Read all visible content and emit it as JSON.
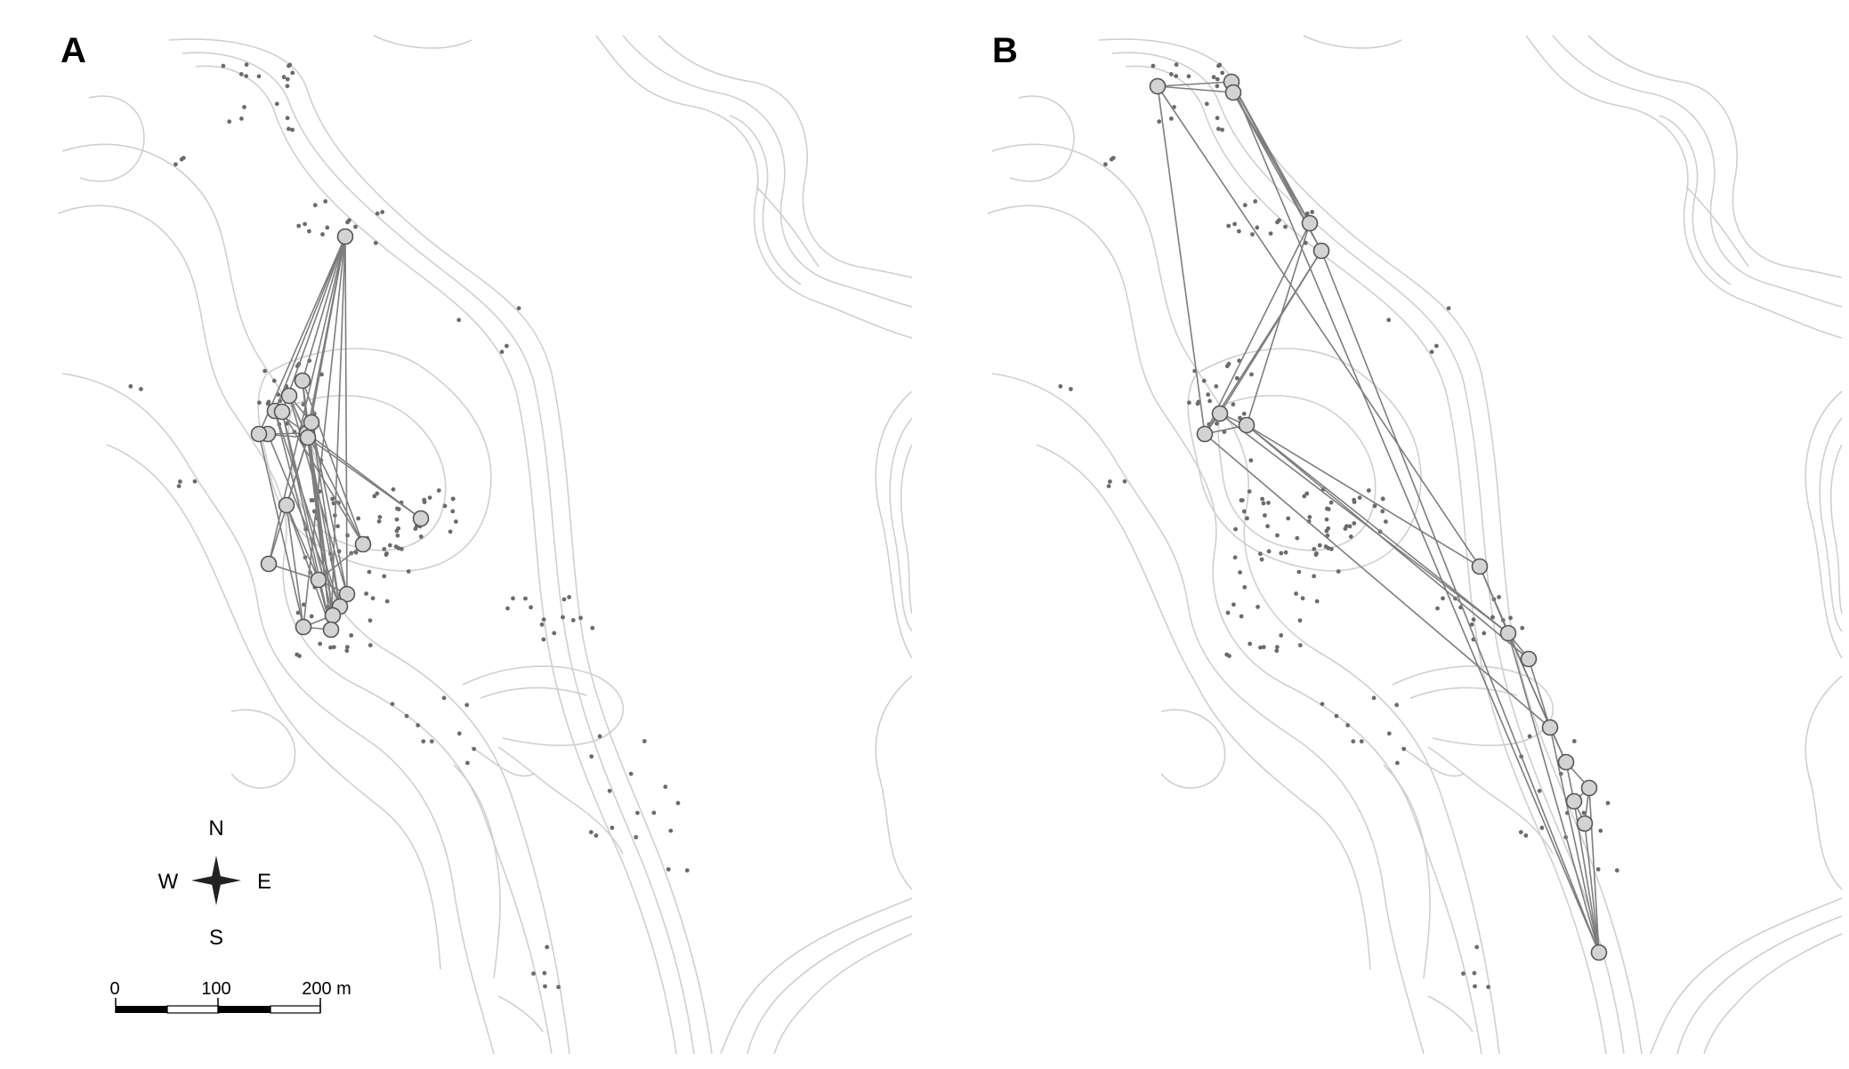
{
  "figure": {
    "panels": [
      {
        "id": "A",
        "label": "A"
      },
      {
        "id": "B",
        "label": "B"
      }
    ],
    "compass": {
      "north": "N",
      "south": "S",
      "east": "E",
      "west": "W"
    },
    "scale_bar": {
      "ticks": [
        "0",
        "100",
        "200 m"
      ]
    },
    "colors": {
      "contour": "#cfcfcf",
      "edge": "#7d7d7d",
      "node_fill": "#d3d3d3",
      "node_stroke": "#555555",
      "site_dot": "#6b6b6b"
    }
  }
}
